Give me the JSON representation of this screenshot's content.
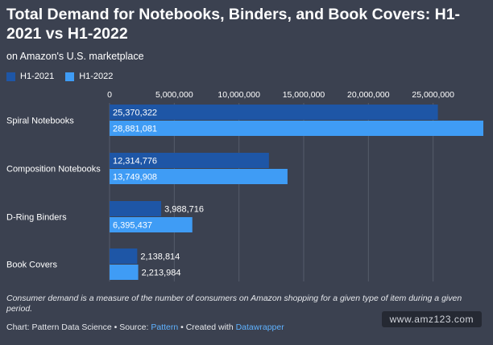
{
  "title": "Total Demand for Notebooks, Binders, and Book Covers: H1-2021 vs H1-2022",
  "subtitle": "on Amazon's U.S. marketplace",
  "legend": [
    {
      "label": "H1-2021",
      "color": "#1e56a6"
    },
    {
      "label": "H1-2022",
      "color": "#3f9cf5"
    }
  ],
  "footnote": "Consumer demand is a measure of the number of consumers on Amazon shopping for a given type of item during a given period.",
  "credits": {
    "prefix": "Chart: Pattern Data Science • Source: ",
    "source": "Pattern",
    "middle": " • Created with ",
    "tool": "Datawrapper"
  },
  "watermark": "www.amz123.com",
  "chart_data": {
    "type": "bar",
    "orientation": "horizontal",
    "categories": [
      "Spiral Notebooks",
      "Composition Notebooks",
      "D-Ring Binders",
      "Book Covers"
    ],
    "series": [
      {
        "name": "H1-2021",
        "color": "#1e56a6",
        "values": [
          25370322,
          12314776,
          3988716,
          2138814
        ],
        "labels": [
          "25,370,322",
          "12,314,776",
          "3,988,716",
          "2,138,814"
        ]
      },
      {
        "name": "H1-2022",
        "color": "#3f9cf5",
        "values": [
          28881081,
          13749908,
          6395437,
          2213984
        ],
        "labels": [
          "28,881,081",
          "13,749,908",
          "6,395,437",
          "2,213,984"
        ]
      }
    ],
    "xticks": [
      0,
      5000000,
      10000000,
      15000000,
      20000000,
      25000000
    ],
    "xtick_labels": [
      "0",
      "5,000,000",
      "10,000,000",
      "15,000,000",
      "20,000,000",
      "25,000,000"
    ],
    "xlim": [
      0,
      28881081
    ],
    "grid": true,
    "legend_position": "top-left"
  }
}
